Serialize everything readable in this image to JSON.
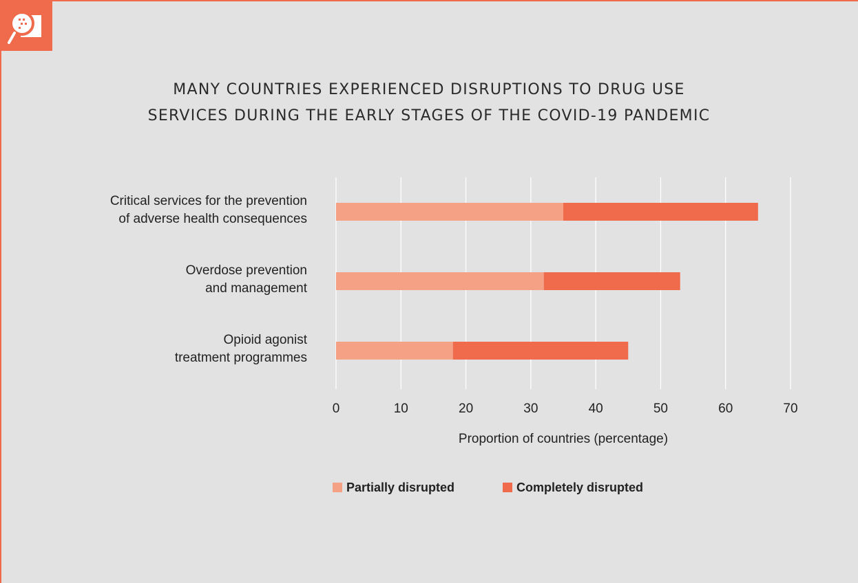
{
  "page": {
    "title_lines": [
      "MANY COUNTRIES EXPERIENCED DISRUPTIONS TO DRUG USE",
      "SERVICES DURING THE EARLY STAGES OF THE COVID-19 PANDEMIC"
    ],
    "icon": "magnifier-report-icon",
    "colors": {
      "accent": "#f06b4b",
      "partial": "#f5a185",
      "complete": "#f06b4b",
      "background": "#e2e2e3",
      "gridline": "#ffffff"
    }
  },
  "chart_data": {
    "type": "bar",
    "orientation": "horizontal",
    "stacked": true,
    "title": "MANY COUNTRIES EXPERIENCED DISRUPTIONS TO DRUG USE SERVICES DURING THE EARLY STAGES OF THE COVID-19 PANDEMIC",
    "categories": [
      "Critical services for the prevention of adverse health consequences",
      "Overdose prevention and management",
      "Opioid agonist treatment programmes"
    ],
    "category_lines": [
      [
        "Critical services for the prevention",
        "of adverse health consequences"
      ],
      [
        "Overdose prevention",
        "and management"
      ],
      [
        "Opioid agonist",
        "treatment programmes"
      ]
    ],
    "series": [
      {
        "name": "Partially disrupted",
        "values": [
          35,
          32,
          18
        ]
      },
      {
        "name": "Completely disrupted",
        "values": [
          30,
          21,
          27
        ]
      }
    ],
    "xlabel": "Proportion of countries (percentage)",
    "ylabel": "",
    "xlim": [
      0,
      70
    ],
    "xticks": [
      "0",
      "10",
      "20",
      "30",
      "40",
      "50",
      "60",
      "70"
    ],
    "grid": true,
    "legend_position": "bottom"
  }
}
